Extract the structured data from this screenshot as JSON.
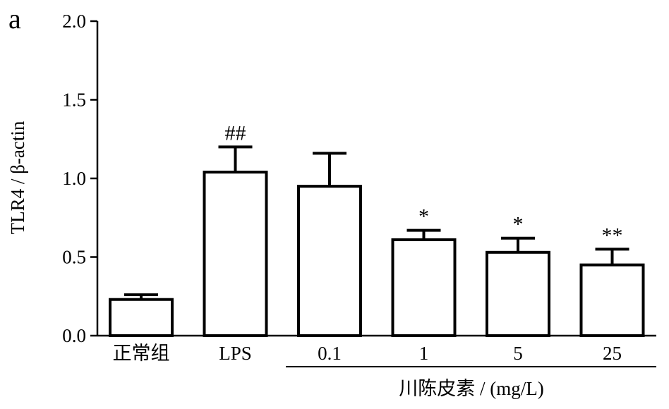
{
  "panel_label": "a",
  "chart_data": {
    "type": "bar",
    "ylabel": "TLR4 / β-actin",
    "ylim": [
      0,
      2.0
    ],
    "yticks": [
      "0.0",
      "0.5",
      "1.0",
      "1.5",
      "2.0"
    ],
    "categories": [
      "正常组",
      "LPS",
      "0.1",
      "1",
      "5",
      "25"
    ],
    "values": [
      0.23,
      1.04,
      0.95,
      0.61,
      0.53,
      0.45
    ],
    "errors": [
      0.03,
      0.16,
      0.21,
      0.06,
      0.09,
      0.1
    ],
    "significance": [
      "",
      "##",
      "",
      "*",
      "*",
      "**"
    ],
    "group_label": "川陈皮素 / (mg/L)",
    "colors": {
      "bar_fill": "#ffffff",
      "bar_stroke": "#000000"
    },
    "grid": false
  }
}
